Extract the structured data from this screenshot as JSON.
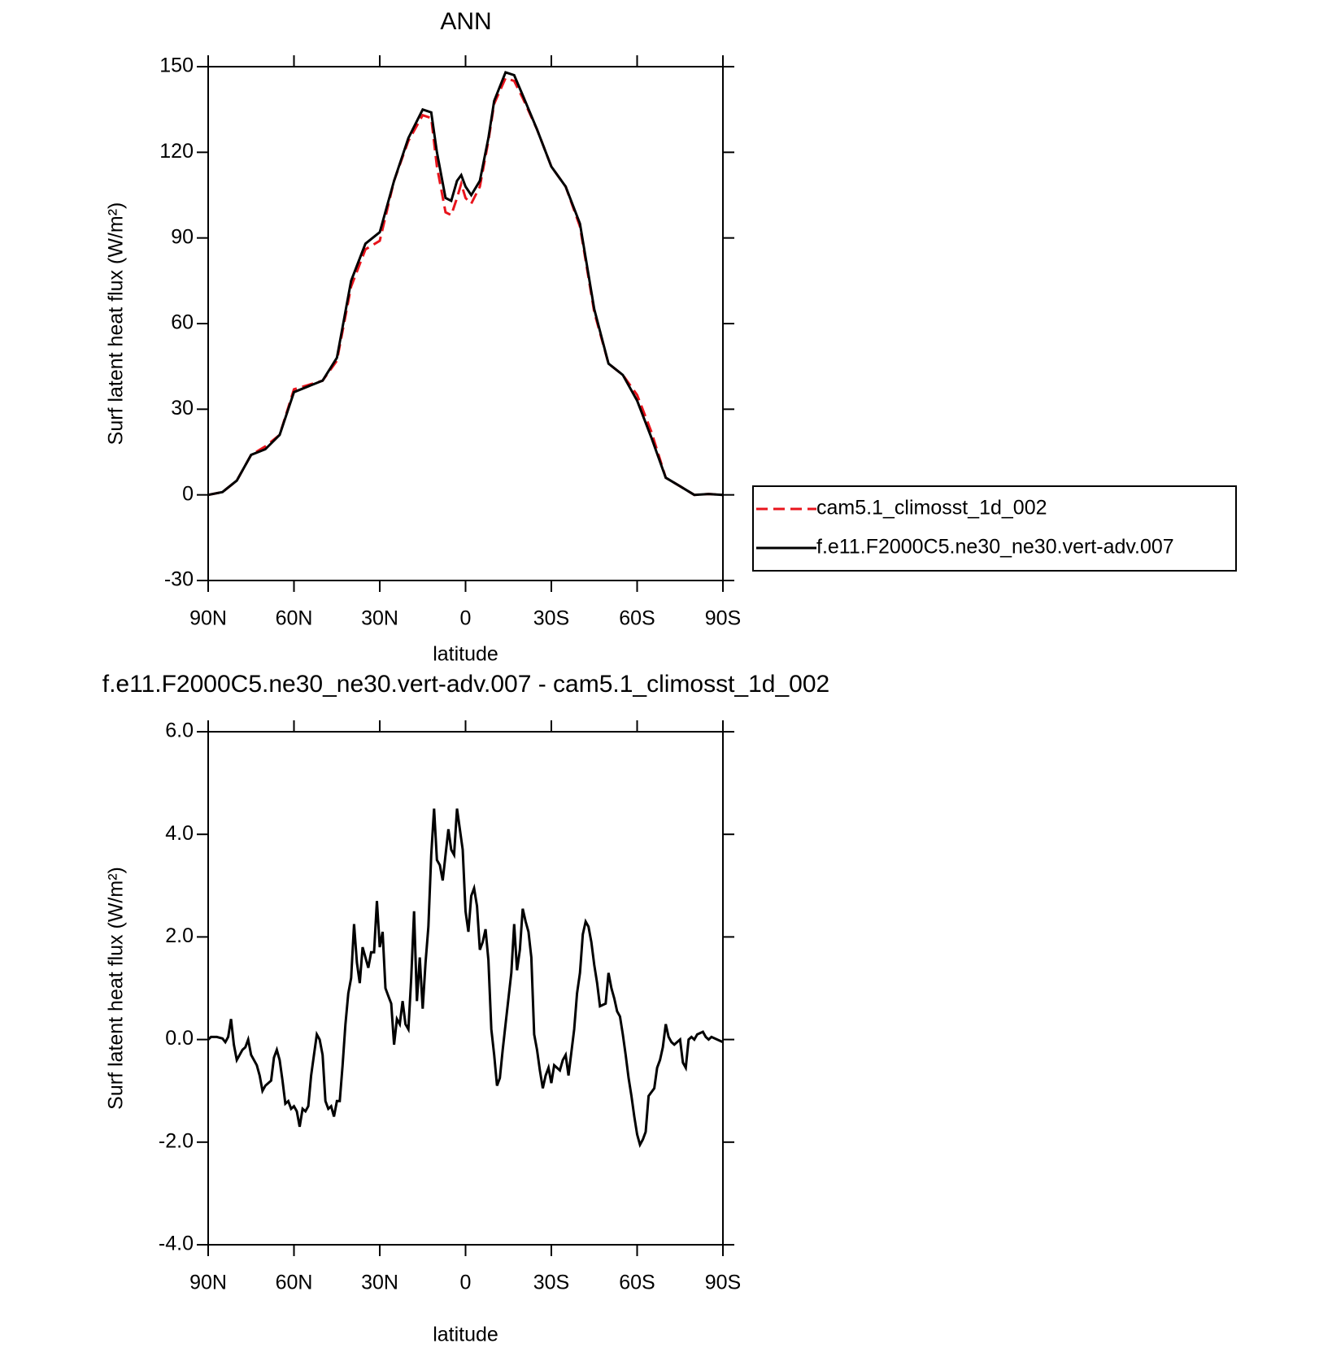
{
  "chart_data": [
    {
      "type": "line",
      "title": "ANN",
      "xlabel": "latitude",
      "ylabel": "Surf latent heat flux (W/m²)",
      "x": [
        90,
        85,
        80,
        75,
        70,
        65,
        60,
        55,
        50,
        45,
        40,
        35,
        30,
        25,
        20,
        15,
        12,
        10,
        7,
        5,
        3,
        1.5,
        0,
        -2,
        -5,
        -8,
        -10,
        -14,
        -17,
        -20,
        -25,
        -30,
        -35,
        -40,
        -45,
        -50,
        -55,
        -60,
        -65,
        -70,
        -75,
        -80,
        -85,
        -90
      ],
      "series": [
        {
          "name": "cam5.1_climosst_1d_002",
          "color": "#e8141c",
          "dashed": true,
          "values": [
            0,
            1,
            5,
            14,
            17,
            21,
            37,
            38.5,
            40,
            47,
            73,
            86,
            89,
            110,
            124,
            133,
            132,
            115,
            99,
            98,
            104,
            109,
            104,
            102,
            108,
            124,
            137,
            146,
            145,
            139,
            128,
            115,
            108,
            94,
            64,
            46,
            42,
            35,
            22,
            6,
            3,
            0,
            0.3,
            0
          ]
        },
        {
          "name": "f.e11.F2000C5.ne30_ne30.vert-adv.007",
          "color": "#000000",
          "dashed": false,
          "values": [
            0,
            1,
            5,
            14,
            16,
            21,
            36,
            38,
            40,
            48,
            75,
            88,
            92,
            110,
            125,
            135,
            134,
            120,
            104,
            103,
            110,
            112,
            108,
            105,
            110,
            125,
            138,
            148,
            147,
            140,
            128,
            115,
            108,
            95,
            65,
            46,
            42,
            33,
            20,
            6,
            3,
            0,
            0.3,
            0
          ]
        }
      ],
      "xlim": [
        90,
        -90
      ],
      "xticks": [
        {
          "value": 90,
          "label": "90N"
        },
        {
          "value": 60,
          "label": "60N"
        },
        {
          "value": 30,
          "label": "30N"
        },
        0,
        {
          "value": -30,
          "label": "30S"
        },
        {
          "value": -60,
          "label": "60S"
        },
        {
          "value": -90,
          "label": "90S"
        }
      ],
      "ylim": [
        -30,
        150
      ],
      "yticks": [
        -30,
        0,
        30,
        60,
        90,
        120,
        150
      ],
      "legend": "right"
    },
    {
      "type": "line",
      "title": "f.e11.F2000C5.ne30_ne30.vert-adv.007 - cam5.1_climosst_1d_002",
      "xlabel": "latitude",
      "ylabel": "Surf latent heat flux (W/m²)",
      "x": [
        90,
        89,
        87,
        85,
        84,
        83,
        82,
        81,
        80,
        78,
        77,
        76,
        75,
        73,
        72,
        71,
        70,
        68,
        67,
        66,
        65,
        64,
        63,
        62,
        61,
        60,
        59,
        58,
        57,
        56,
        55,
        54,
        53,
        52,
        51,
        50,
        49,
        48,
        47,
        46,
        45,
        44,
        43,
        42,
        41,
        40,
        39,
        38,
        37,
        36,
        35,
        34,
        33,
        32,
        31,
        30,
        29,
        28,
        27,
        26,
        25,
        24,
        23,
        22,
        21,
        20,
        19,
        18,
        17,
        16,
        15,
        14,
        13,
        12,
        11,
        10,
        9,
        8,
        7,
        6,
        5,
        4,
        3,
        1,
        0,
        -1,
        -2,
        -3,
        -4,
        -5,
        -6,
        -7,
        -8,
        -9,
        -10,
        -11,
        -12,
        -13,
        -14,
        -16,
        -17,
        -18,
        -19,
        -20,
        -21,
        -22,
        -23,
        -24,
        -25,
        -26,
        -27,
        -28,
        -29,
        -30,
        -31,
        -33,
        -34,
        -35,
        -36,
        -37,
        -38,
        -39,
        -40,
        -41,
        -42,
        -43,
        -44,
        -45,
        -46,
        -47,
        -49,
        -50,
        -51,
        -52,
        -53,
        -54,
        -55,
        -56,
        -57,
        -58,
        -59,
        -60,
        -61,
        -62,
        -63,
        -64,
        -66,
        -67,
        -68,
        -69,
        -70,
        -71,
        -72,
        -73,
        -74,
        -75,
        -76,
        -77,
        -78,
        -79,
        -80,
        -81,
        -83,
        -84,
        -85,
        -86,
        -88,
        -90
      ],
      "series": [
        {
          "color": "#000000",
          "values": [
            0,
            0.05,
            0.05,
            0.02,
            -0.05,
            0.05,
            0.4,
            -0.1,
            -0.4,
            -0.2,
            -0.15,
            0,
            -0.3,
            -0.5,
            -0.7,
            -1.0,
            -0.9,
            -0.8,
            -0.35,
            -0.2,
            -0.4,
            -0.8,
            -1.25,
            -1.2,
            -1.35,
            -1.3,
            -1.4,
            -1.7,
            -1.35,
            -1.4,
            -1.3,
            -0.7,
            -0.3,
            0.1,
            0,
            -0.3,
            -1.2,
            -1.35,
            -1.3,
            -1.5,
            -1.2,
            -1.2,
            -0.5,
            0.3,
            0.9,
            1.2,
            2.25,
            1.5,
            1.1,
            1.8,
            1.6,
            1.4,
            1.7,
            1.7,
            2.7,
            1.8,
            2.1,
            1.0,
            0.85,
            0.7,
            -0.1,
            0.4,
            0.3,
            0.75,
            0.3,
            0.2,
            1.2,
            2.5,
            0.75,
            1.6,
            0.6,
            1.5,
            2.2,
            3.6,
            4.5,
            3.5,
            3.4,
            3.1,
            3.6,
            4.1,
            3.7,
            3.6,
            4.5,
            3.7,
            2.5,
            2.1,
            2.8,
            2.95,
            2.6,
            1.75,
            1.9,
            2.15,
            1.55,
            0.2,
            -0.3,
            -0.9,
            -0.75,
            -0.2,
            0.3,
            1.3,
            2.25,
            1.35,
            1.75,
            2.55,
            2.3,
            2.1,
            1.6,
            0.1,
            -0.2,
            -0.6,
            -0.95,
            -0.7,
            -0.55,
            -0.85,
            -0.5,
            -0.6,
            -0.4,
            -0.3,
            -0.7,
            -0.25,
            0.2,
            0.9,
            1.3,
            2.05,
            2.3,
            2.2,
            1.9,
            1.45,
            1.1,
            0.65,
            0.7,
            1.3,
            1.0,
            0.8,
            0.55,
            0.45,
            0.1,
            -0.3,
            -0.75,
            -1.1,
            -1.5,
            -1.85,
            -2.05,
            -1.95,
            -1.8,
            -1.1,
            -0.95,
            -0.55,
            -0.4,
            -0.15,
            0.3,
            0.05,
            -0.05,
            -0.1,
            -0.05,
            0,
            -0.45,
            -0.55,
            0,
            0.05,
            0,
            0.1,
            0.15,
            0.05,
            0,
            0.05,
            0,
            -0.05
          ]
        }
      ],
      "xlim": [
        90,
        -90
      ],
      "xticks": [
        {
          "value": 90,
          "label": "90N"
        },
        {
          "value": 60,
          "label": "60N"
        },
        {
          "value": 30,
          "label": "30N"
        },
        0,
        {
          "value": -30,
          "label": "30S"
        },
        {
          "value": -60,
          "label": "60S"
        },
        {
          "value": -90,
          "label": "90S"
        }
      ],
      "ylim": [
        -4,
        6
      ],
      "yticks": [
        {
          "value": -4,
          "label": "-4.0"
        },
        {
          "value": -2,
          "label": "-2.0"
        },
        {
          "value": 0,
          "label": "0.0"
        },
        {
          "value": 2,
          "label": "2.0"
        },
        {
          "value": 4,
          "label": "4.0"
        },
        {
          "value": 6,
          "label": "6.0"
        }
      ]
    }
  ]
}
